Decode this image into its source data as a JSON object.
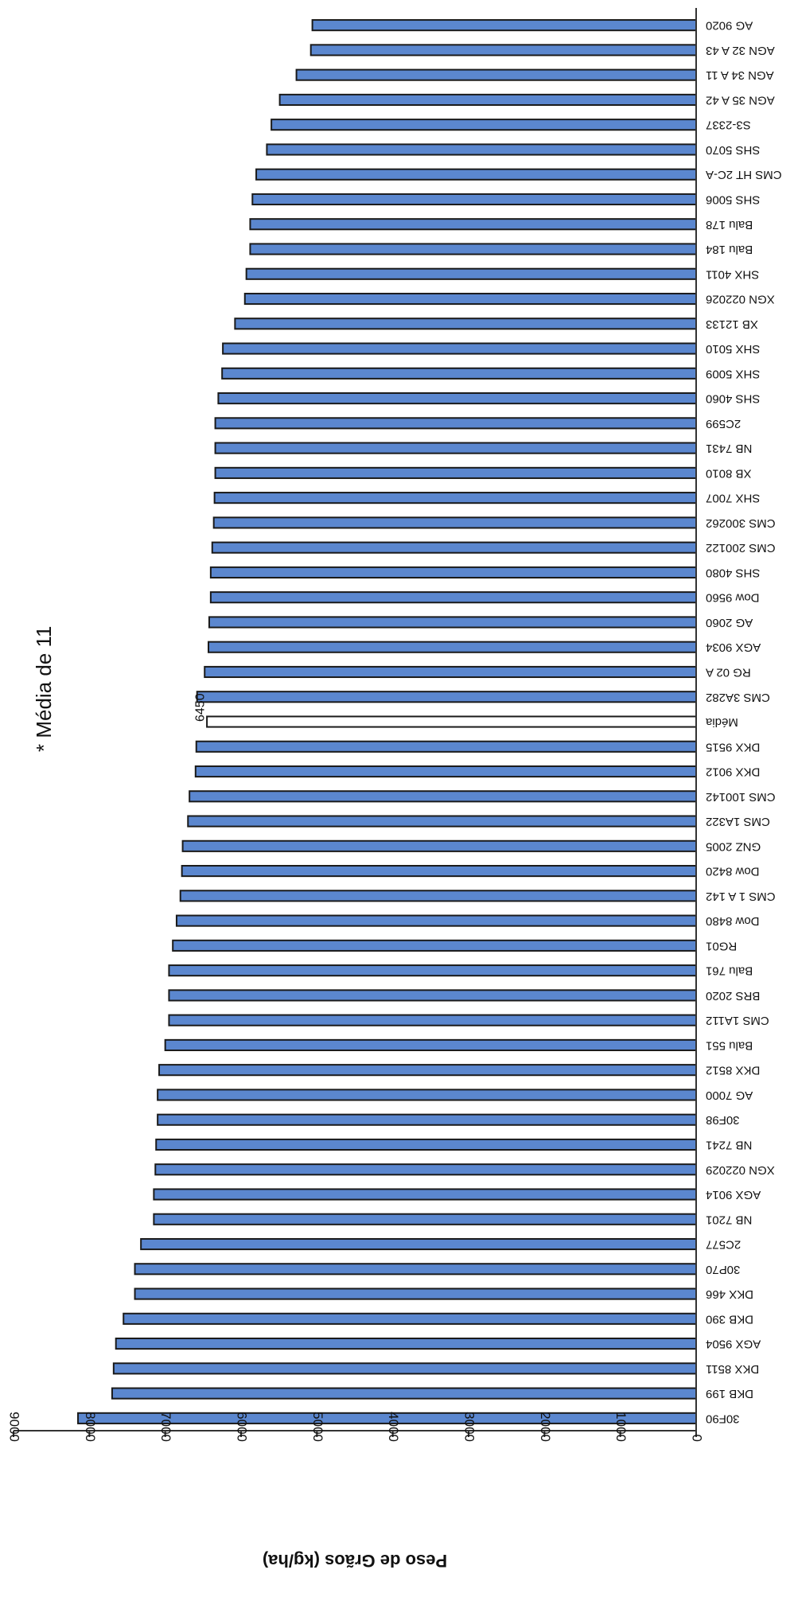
{
  "chart_data": {
    "type": "bar",
    "orientation": "horizontal",
    "rotated": "180deg",
    "ylabel": "Peso de Grãos (kg/ha)",
    "note": "* Média de 11",
    "ylim": [
      0,
      9000
    ],
    "yticks": [
      "0",
      "1000",
      "2000",
      "3000",
      "4000",
      "5000",
      "6000",
      "7000",
      "8000",
      "9000"
    ],
    "bar_color": "#5b87cf",
    "mean_bar_color": "#ffffff",
    "mean_category": "Média",
    "mean_label": "6450",
    "grid": false,
    "categories": [
      "30F90",
      "DKB 199",
      "DKX 8511",
      "AGX 9504",
      "DKB 390",
      "DKX 466",
      "30P70",
      "2C577",
      "NB 7201",
      "AGX 9014",
      "XGN 022029",
      "NB 7241",
      "30F98",
      "AG 7000",
      "DKX 8512",
      "Balu 551",
      "CMS 1A112",
      "BRS 2020",
      "Balu 761",
      "RG01",
      "Dow 8480",
      "CMS 1 A 142",
      "Dow 8420",
      "GNZ 2005",
      "CMS 1A322",
      "CMS 100142",
      "DKX 9012",
      "DKX 9515",
      "Média",
      "CMS 3A282",
      "RG 02 A",
      "AGX 9034",
      "AG 2060",
      "Dow 9560",
      "SHS 4080",
      "CMS 200122",
      "CMS 300262",
      "SHX 7007",
      "XB 8010",
      "NB 7431",
      "2C599",
      "SHS 4060",
      "SHX 5009",
      "SHX 5010",
      "XB 12133",
      "XGN 022026",
      "SHX 4011",
      "Balu 184",
      "Balu 178",
      "SHS 5006",
      "CMS HT 2C-A",
      "SHS 5070",
      "S3-2337",
      "AGN 35 A 42",
      "AGN 34 A 11",
      "AGN 32 A 43",
      "AG 9020"
    ],
    "values": [
      8150,
      7700,
      7680,
      7650,
      7550,
      7400,
      7400,
      7320,
      7150,
      7150,
      7130,
      7120,
      7100,
      7100,
      7080,
      7000,
      6950,
      6950,
      6950,
      6900,
      6850,
      6800,
      6780,
      6770,
      6700,
      6680,
      6600,
      6590,
      6450,
      6580,
      6480,
      6430,
      6420,
      6400,
      6400,
      6380,
      6360,
      6350,
      6340,
      6340,
      6340,
      6300,
      6250,
      6240,
      6080,
      5950,
      5930,
      5880,
      5880,
      5850,
      5800,
      5660,
      5600,
      5490,
      5270,
      5080,
      5060
    ]
  }
}
